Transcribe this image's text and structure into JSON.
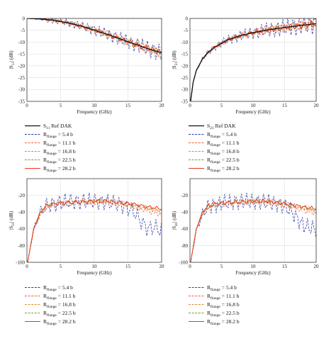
{
  "figure": {
    "units_label": "(dB)",
    "subscript_range": "flange",
    "legend_ref": "Ref DAK",
    "colors": {
      "ref": "#111111",
      "r5_4": "#2b3aa8",
      "r11_1": "#ff5a3c",
      "r16_8": "#e58a2a",
      "r22_5": "#7aa02a",
      "r28_2": "#e8341c"
    },
    "legend_entries": [
      {
        "prefix": "R",
        "sub": "flange",
        "value": "= 5.4 b",
        "style": "dash",
        "color_key": "r5_4"
      },
      {
        "prefix": "R",
        "sub": "flange",
        "value": "= 11.1 b",
        "style": "dash",
        "color_key": "r11_1"
      },
      {
        "prefix": "R",
        "sub": "flange",
        "value": "= 16.8 b",
        "style": "dash",
        "color_key": "r16_8"
      },
      {
        "prefix": "R",
        "sub": "flange",
        "value": "= 22.5 b",
        "style": "dash",
        "color_key": "r22_5"
      },
      {
        "prefix": "R",
        "sub": "flange",
        "value": "= 28.2 b",
        "style": "solid",
        "color_key": "r28_2"
      }
    ]
  },
  "chart_data": [
    {
      "type": "line",
      "ylabel_main": "|S",
      "ylabel_sub": "11",
      "ylabel_unit": "| (dB)",
      "xlabel": "Frequency (GHz)",
      "xlim": [
        0,
        20
      ],
      "ylim": [
        -35,
        0
      ],
      "xticks": [
        0,
        5,
        10,
        15,
        20
      ],
      "yticks": [
        0,
        -5,
        -10,
        -15,
        -20,
        -25,
        -30,
        -35
      ],
      "legend_ref_label": {
        "prefix": "S",
        "sub": "11",
        "text": " Ref DAK"
      },
      "ref_series": {
        "x": [
          0,
          2,
          4,
          6,
          8,
          10,
          12,
          14,
          16,
          18,
          20
        ],
        "y": [
          0,
          -0.2,
          -0.8,
          -1.8,
          -3.2,
          -4.9,
          -6.8,
          -8.8,
          -10.8,
          -12.8,
          -14.5
        ]
      },
      "series": [
        {
          "name": "5.4 b",
          "amp": 2.2,
          "osc": 1.9
        },
        {
          "name": "11.1 b",
          "amp": 1.3,
          "osc": 1.3
        },
        {
          "name": "16.8 b",
          "amp": 1.0,
          "osc": 1.6
        },
        {
          "name": "22.5 b",
          "amp": 0.8,
          "osc": 1.1
        },
        {
          "name": "28.2 b",
          "amp": 0.7,
          "osc": 1.45
        }
      ]
    },
    {
      "type": "line",
      "ylabel_main": "|S",
      "ylabel_sub": "21",
      "ylabel_unit": "| (dB)",
      "xlabel": "Frequency (GHz)",
      "xlim": [
        0,
        20
      ],
      "ylim": [
        -35,
        0
      ],
      "xticks": [
        0,
        5,
        10,
        15,
        20
      ],
      "yticks": [
        0,
        -5,
        -10,
        -15,
        -20,
        -25,
        -30,
        -35
      ],
      "legend_ref_label": {
        "prefix": "S",
        "sub": "21",
        "text": " Ref DAK"
      },
      "ref_series": {
        "x": [
          0.1,
          0.5,
          1,
          2,
          3,
          4,
          5,
          6,
          8,
          10,
          12,
          14,
          16,
          18,
          20
        ],
        "y": [
          -35,
          -27,
          -22,
          -17,
          -14,
          -12,
          -10.5,
          -9,
          -7.3,
          -6,
          -5,
          -4.2,
          -3.5,
          -2.8,
          -2.2
        ]
      },
      "series": [
        {
          "name": "5.4 b",
          "amp": 2.6,
          "osc": 1.8
        },
        {
          "name": "11.1 b",
          "amp": 1.5,
          "osc": 1.3
        },
        {
          "name": "16.8 b",
          "amp": 1.1,
          "osc": 1.6
        },
        {
          "name": "22.5 b",
          "amp": 0.9,
          "osc": 1.1
        },
        {
          "name": "28.2 b",
          "amp": 0.8,
          "osc": 1.4
        }
      ]
    },
    {
      "type": "line",
      "ylabel_main": "|S",
      "ylabel_sub": "31",
      "ylabel_unit": "| (dB)",
      "xlabel": "Frequency (GHz)",
      "xlim": [
        0,
        20
      ],
      "ylim": [
        -100,
        0
      ],
      "xticks": [
        0,
        5,
        10,
        15,
        20
      ],
      "yticks": [
        -20,
        -40,
        -60,
        -80,
        -100
      ],
      "ref_series": null,
      "series": [
        {
          "name": "5.4 b",
          "amp": 10,
          "osc": 1.7,
          "x": [
            0.1,
            1,
            2,
            3,
            5,
            8,
            10,
            12,
            14,
            16,
            17,
            18,
            19,
            20
          ],
          "y": [
            -100,
            -60,
            -40,
            -32,
            -28,
            -27,
            -27,
            -28,
            -31,
            -40,
            -52,
            -60,
            -58,
            -62
          ]
        },
        {
          "name": "11.1 b",
          "amp": 4,
          "osc": 1.3,
          "x": [
            0.1,
            1,
            2,
            3,
            5,
            8,
            10,
            12,
            14,
            16,
            18,
            20
          ],
          "y": [
            -100,
            -62,
            -42,
            -33,
            -30,
            -28,
            -27,
            -27,
            -29,
            -33,
            -38,
            -42
          ]
        },
        {
          "name": "16.8 b",
          "amp": 3,
          "osc": 1.5,
          "x": [
            0.1,
            1,
            2,
            3,
            5,
            8,
            10,
            12,
            14,
            16,
            18,
            20
          ],
          "y": [
            -100,
            -60,
            -40,
            -32,
            -29,
            -28,
            -27,
            -28,
            -30,
            -34,
            -37,
            -40
          ]
        },
        {
          "name": "22.5 b",
          "amp": 2.5,
          "osc": 1.2,
          "x": [
            0.1,
            1,
            2,
            3,
            5,
            8,
            10,
            12,
            14,
            16,
            18,
            20
          ],
          "y": [
            -100,
            -61,
            -41,
            -33,
            -30,
            -28,
            -27,
            -27,
            -29,
            -32,
            -35,
            -38
          ]
        },
        {
          "name": "28.2 b",
          "amp": 2.2,
          "osc": 1.4,
          "x": [
            0.1,
            1,
            2,
            3,
            5,
            8,
            10,
            12,
            14,
            16,
            18,
            20
          ],
          "y": [
            -100,
            -60,
            -40,
            -32,
            -29,
            -28,
            -27,
            -27,
            -29,
            -31,
            -34,
            -36
          ]
        }
      ]
    },
    {
      "type": "line",
      "ylabel_main": "|S",
      "ylabel_sub": "41",
      "ylabel_unit": "| (dB)",
      "xlabel": "Frequency (GHz)",
      "xlim": [
        0,
        20
      ],
      "ylim": [
        -100,
        0
      ],
      "xticks": [
        0,
        5,
        10,
        15,
        20
      ],
      "yticks": [
        -20,
        -40,
        -60,
        -80,
        -100
      ],
      "ref_series": null,
      "series": [
        {
          "name": "5.4 b",
          "amp": 10,
          "osc": 1.75,
          "x": [
            0.1,
            1,
            2,
            3,
            5,
            8,
            10,
            12,
            14,
            16,
            17,
            18,
            19,
            20
          ],
          "y": [
            -100,
            -62,
            -42,
            -33,
            -29,
            -27,
            -27,
            -28,
            -30,
            -38,
            -48,
            -56,
            -58,
            -60
          ]
        },
        {
          "name": "11.1 b",
          "amp": 4,
          "osc": 1.3,
          "x": [
            0.1,
            1,
            2,
            3,
            5,
            8,
            10,
            12,
            14,
            16,
            18,
            20
          ],
          "y": [
            -100,
            -62,
            -42,
            -33,
            -30,
            -28,
            -27,
            -27,
            -29,
            -33,
            -37,
            -41
          ]
        },
        {
          "name": "16.8 b",
          "amp": 3,
          "osc": 1.5,
          "x": [
            0.1,
            1,
            2,
            3,
            5,
            8,
            10,
            12,
            14,
            16,
            18,
            20
          ],
          "y": [
            -100,
            -61,
            -41,
            -32,
            -29,
            -28,
            -27,
            -28,
            -30,
            -33,
            -36,
            -39
          ]
        },
        {
          "name": "22.5 b",
          "amp": 2.5,
          "osc": 1.2,
          "x": [
            0.1,
            1,
            2,
            3,
            5,
            8,
            10,
            12,
            14,
            16,
            18,
            20
          ],
          "y": [
            -100,
            -61,
            -41,
            -33,
            -30,
            -28,
            -27,
            -27,
            -29,
            -32,
            -35,
            -37
          ]
        },
        {
          "name": "28.2 b",
          "amp": 2.2,
          "osc": 1.4,
          "x": [
            0.1,
            1,
            2,
            3,
            5,
            8,
            10,
            12,
            14,
            16,
            18,
            20
          ],
          "y": [
            -100,
            -60,
            -40,
            -32,
            -29,
            -28,
            -27,
            -27,
            -29,
            -31,
            -34,
            -36
          ]
        }
      ]
    }
  ]
}
